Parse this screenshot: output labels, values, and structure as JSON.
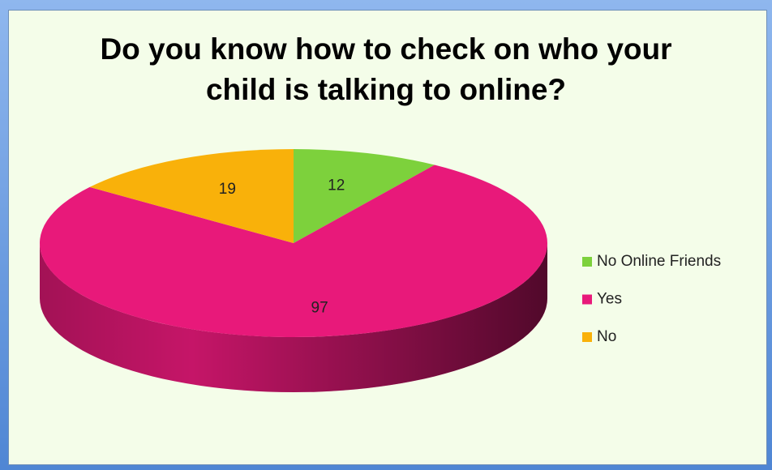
{
  "chart_data": {
    "type": "pie3d",
    "title": "Do you know how to check on who your child is talking to online?",
    "categories": [
      "No Online Friends",
      "Yes",
      "No"
    ],
    "values": [
      12,
      97,
      19
    ],
    "colors": [
      "#7dd13c",
      "#e8197a",
      "#f9b10a"
    ],
    "legend": "right"
  }
}
